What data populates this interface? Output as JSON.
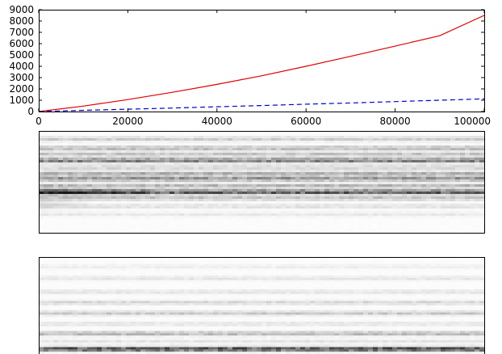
{
  "chart_data": [
    {
      "type": "line",
      "title": "",
      "xlabel": "",
      "ylabel": "",
      "xlim": [
        0,
        100000
      ],
      "ylim": [
        0,
        9000
      ],
      "x_ticks": [
        0,
        20000,
        40000,
        60000,
        80000,
        100000
      ],
      "y_ticks": [
        0,
        1000,
        2000,
        3000,
        4000,
        5000,
        6000,
        7000,
        8000,
        9000
      ],
      "grid": false,
      "legend": "none",
      "x": [
        0,
        10000,
        20000,
        30000,
        40000,
        50000,
        60000,
        70000,
        80000,
        90000,
        100000
      ],
      "series": [
        {
          "color": "#e00000",
          "style": "solid",
          "values": [
            0,
            480,
            1060,
            1700,
            2400,
            3160,
            4000,
            4880,
            5780,
            6700,
            8500
          ]
        },
        {
          "color": "#0000d0",
          "style": "dashed",
          "values": [
            0,
            110,
            210,
            310,
            420,
            530,
            650,
            760,
            880,
            1000,
            1120
          ]
        }
      ]
    },
    {
      "type": "heatmap",
      "colormap": "white-to-black",
      "x_extent": [
        0,
        100000
      ],
      "axes_visible": false,
      "bands": [
        {
          "pos": 0.08,
          "strength": 0.2
        },
        {
          "pos": 0.17,
          "strength": 0.28
        },
        {
          "pos": 0.23,
          "strength": 0.24
        },
        {
          "pos": 0.29,
          "strength": 0.55
        },
        {
          "pos": 0.36,
          "strength": 0.18
        },
        {
          "pos": 0.42,
          "strength": 0.32
        },
        {
          "pos": 0.47,
          "strength": 0.45
        },
        {
          "pos": 0.54,
          "strength": 0.3
        },
        {
          "pos": 0.6,
          "strength": 0.7
        },
        {
          "pos": 0.66,
          "strength": 0.25
        },
        {
          "pos": 0.74,
          "strength": 0.12
        },
        {
          "pos": 0.82,
          "strength": 0.08
        }
      ]
    },
    {
      "type": "heatmap",
      "colormap": "white-to-black",
      "x_extent": [
        0,
        100000
      ],
      "axes_visible": false,
      "bands": [
        {
          "pos": 0.1,
          "strength": 0.06
        },
        {
          "pos": 0.22,
          "strength": 0.1
        },
        {
          "pos": 0.36,
          "strength": 0.1
        },
        {
          "pos": 0.47,
          "strength": 0.16
        },
        {
          "pos": 0.58,
          "strength": 0.22
        },
        {
          "pos": 0.69,
          "strength": 0.1
        },
        {
          "pos": 0.79,
          "strength": 0.3
        },
        {
          "pos": 0.87,
          "strength": 0.1
        },
        {
          "pos": 0.95,
          "strength": 0.8
        }
      ]
    }
  ]
}
